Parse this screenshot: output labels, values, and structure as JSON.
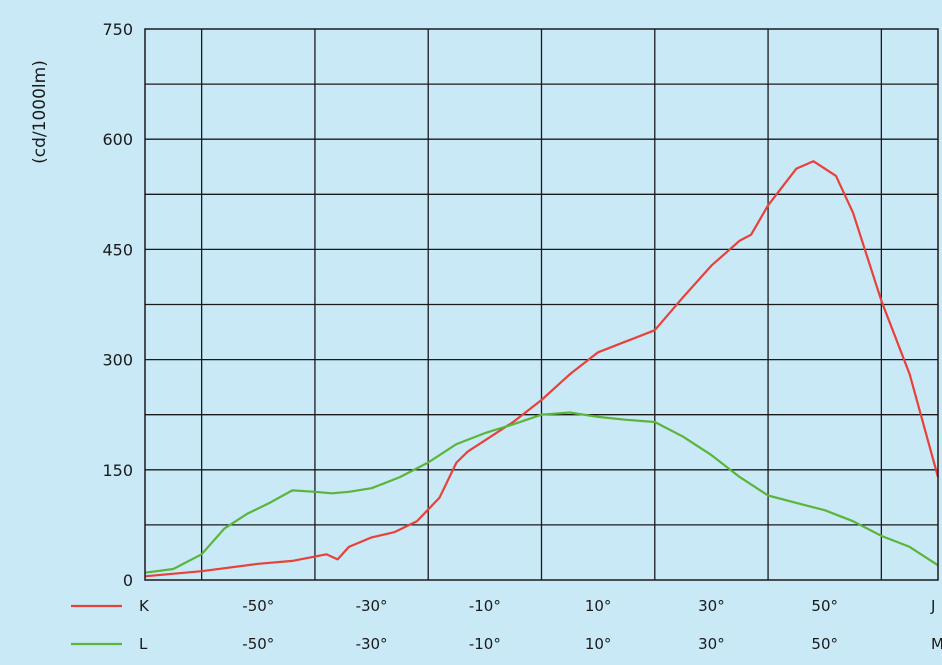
{
  "chart_data": {
    "type": "line",
    "ylabel": "(cd/1000lm)",
    "ylim": [
      0,
      750
    ],
    "yticks": [
      0,
      150,
      300,
      450,
      600,
      750
    ],
    "xlim": [
      -70,
      70
    ],
    "xticks": [
      -50,
      -30,
      -10,
      10,
      30,
      50
    ],
    "xtick_labels": [
      "-50°",
      "-30°",
      "-10°",
      "10°",
      "30°",
      "50°"
    ],
    "xtick_end_labels": [
      "J",
      "M"
    ],
    "grid": true,
    "legend_position": "bottom-left",
    "series": [
      {
        "name": "K",
        "color": "#e8413a",
        "x": [
          -70,
          -60,
          -50,
          -44,
          -38,
          -36,
          -34,
          -30,
          -26,
          -22,
          -18,
          -15,
          -13,
          -10,
          -5,
          0,
          5,
          10,
          15,
          20,
          25,
          30,
          35,
          37,
          40,
          45,
          48,
          52,
          55,
          60,
          65,
          70
        ],
        "y": [
          5,
          12,
          22,
          26,
          35,
          28,
          45,
          58,
          65,
          80,
          112,
          160,
          175,
          190,
          215,
          245,
          280,
          310,
          325,
          340,
          385,
          428,
          462,
          470,
          510,
          560,
          570,
          550,
          500,
          380,
          280,
          140
        ]
      },
      {
        "name": "L",
        "color": "#5ab53a",
        "x": [
          -70,
          -65,
          -60,
          -56,
          -52,
          -48,
          -44,
          -40,
          -37,
          -34,
          -30,
          -25,
          -20,
          -15,
          -10,
          -5,
          0,
          5,
          10,
          15,
          20,
          25,
          30,
          35,
          40,
          45,
          50,
          55,
          60,
          65,
          70
        ],
        "y": [
          10,
          15,
          35,
          70,
          90,
          105,
          122,
          120,
          118,
          120,
          125,
          140,
          160,
          185,
          200,
          212,
          225,
          228,
          222,
          218,
          215,
          195,
          170,
          140,
          115,
          105,
          95,
          80,
          60,
          45,
          20
        ]
      }
    ]
  }
}
